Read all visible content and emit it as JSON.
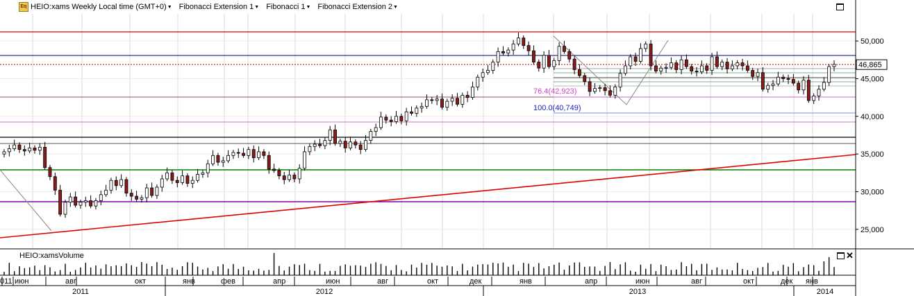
{
  "toolbar": {
    "symbol_label": "HEIO:xams Weekly Local time (GMT+0)",
    "fib_ext1_label": "Fibonacci Extension 1",
    "fib1_label": "Fibonacci 1",
    "fib_ext2_label": "Fibonacci Extension 2",
    "icon": "Eq"
  },
  "volume_panel_title": "HEIO:xamsVolume",
  "price_tag": "46,865",
  "fib_labels": {
    "level_764": "76.4(42,923)",
    "level_100": "100.0(40,749)"
  },
  "colors": {
    "up_candle": "#ffffff",
    "down_candle": "#8b1a1a",
    "red_line": "#e00000",
    "green_line": "#008000",
    "purple_line": "#8000a0",
    "navy_line": "#000080",
    "grid": "#d8d8d8"
  },
  "chart_data": [
    {
      "type": "candlestick",
      "y_ticks": [
        "50,000",
        "45,000",
        "40,000",
        "35,000",
        "30,000",
        "25,000"
      ],
      "y_tick_values": [
        50000,
        45000,
        40000,
        35000,
        30000,
        25000
      ],
      "ylim": [
        22500,
        53600
      ],
      "x_month_labels": [
        "июн",
        "авг",
        "окт",
        "янв",
        "фев",
        "апр",
        "июн",
        "авг",
        "окт",
        "дек",
        "янв",
        "апр",
        "июн",
        "авг",
        "окт",
        "дек",
        "янв"
      ],
      "x_year_labels": [
        "2011",
        "2012",
        "2013",
        "2014"
      ],
      "x_edge_label": "011",
      "last_price": 46865,
      "closes": [
        35300,
        35700,
        36200,
        35600,
        35400,
        35800,
        35500,
        35900,
        33200,
        32000,
        30200,
        27000,
        28600,
        29300,
        28200,
        28600,
        28800,
        28100,
        28800,
        29600,
        30200,
        31500,
        30800,
        31600,
        29800,
        29400,
        29000,
        29200,
        30500,
        29500,
        30600,
        31700,
        32500,
        31500,
        31200,
        32100,
        31100,
        31500,
        32300,
        32500,
        33700,
        34800,
        33900,
        34100,
        34800,
        35200,
        35100,
        34800,
        35600,
        34500,
        35300,
        34800,
        33000,
        32800,
        32100,
        31600,
        32200,
        31700,
        33100,
        35300,
        36000,
        36300,
        36100,
        36800,
        38200,
        36400,
        36700,
        35800,
        36600,
        36200,
        35600,
        36800,
        38000,
        38500,
        39900,
        39500,
        39300,
        40000,
        39400,
        40600,
        40400,
        41100,
        41300,
        42200,
        42100,
        42300,
        41200,
        42000,
        42400,
        41600,
        42800,
        42500,
        43900,
        45200,
        45800,
        46100,
        47200,
        48600,
        48400,
        48800,
        49600,
        50400,
        49400,
        48700,
        47200,
        46400,
        48100,
        46600,
        47400,
        49300,
        48600,
        47600,
        46200,
        45400,
        44600,
        43300,
        43700,
        43800,
        43400,
        42800,
        43900,
        45700,
        46700,
        47900,
        47300,
        49000,
        49600,
        46700,
        46000,
        46400,
        46500,
        47100,
        46200,
        47500,
        46600,
        46000,
        45900,
        46700,
        46100,
        47900,
        46600,
        47200,
        46300,
        46700,
        47100,
        46700,
        46100,
        45300,
        45800,
        43600,
        44100,
        44300,
        45200,
        45000,
        44900,
        44400,
        43500,
        44800,
        42100,
        42700,
        43600,
        44500,
        46600,
        46900
      ]
    },
    {
      "type": "bar",
      "title": "HEIO:xamsVolume"
    }
  ]
}
